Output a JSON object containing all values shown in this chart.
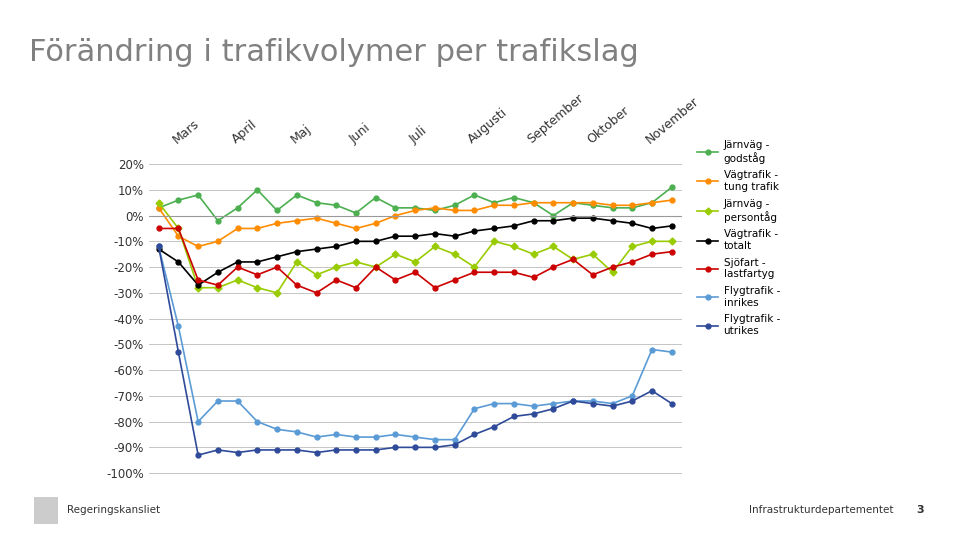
{
  "title": "Förändring i trafikvolymer per trafikslag",
  "background_color": "#ffffff",
  "title_fontsize": 22,
  "title_color": "#808080",
  "x_labels": [
    "Mars",
    "April",
    "Maj",
    "Juni",
    "Juli",
    "Augusti",
    "September",
    "Oktober",
    "November"
  ],
  "series": {
    "Järnväg -\ngodståg": {
      "color": "#4CAF50",
      "marker": "o",
      "data": [
        3,
        6,
        8,
        -2,
        3,
        10,
        2,
        8,
        5,
        4,
        1,
        7,
        3,
        3,
        2,
        4,
        8,
        5,
        7,
        5,
        0,
        5,
        4,
        3,
        3,
        5,
        11
      ]
    },
    "Vägtrafik -\ntung trafik": {
      "color": "#FF8C00",
      "marker": "o",
      "data": [
        3,
        -8,
        -12,
        -10,
        -5,
        -5,
        -3,
        -2,
        -1,
        -3,
        -5,
        -3,
        0,
        2,
        3,
        2,
        2,
        4,
        4,
        5,
        5,
        5,
        5,
        4,
        4,
        5,
        6
      ]
    },
    "Järnväg -\npersontåg": {
      "color": "#99CC00",
      "marker": "D",
      "data": [
        5,
        -5,
        -28,
        -28,
        -25,
        -28,
        -30,
        -18,
        -23,
        -20,
        -18,
        -20,
        -15,
        -18,
        -12,
        -15,
        -20,
        -10,
        -12,
        -15,
        -12,
        -17,
        -15,
        -22,
        -12,
        -10,
        -10
      ]
    },
    "Vägtrafik -\ntotalt": {
      "color": "#000000",
      "marker": "o",
      "data": [
        -13,
        -18,
        -27,
        -22,
        -18,
        -18,
        -16,
        -14,
        -13,
        -12,
        -10,
        -10,
        -8,
        -8,
        -7,
        -8,
        -6,
        -5,
        -4,
        -2,
        -2,
        -1,
        -1,
        -2,
        -3,
        -5,
        -4
      ]
    },
    "Sjöfart -\nlastfartyg": {
      "color": "#CC0000",
      "marker": "o",
      "data": [
        -5,
        -5,
        -25,
        -27,
        -20,
        -23,
        -20,
        -27,
        -30,
        -25,
        -28,
        -20,
        -25,
        -22,
        -28,
        -25,
        -22,
        -22,
        -22,
        -24,
        -20,
        -17,
        -23,
        -20,
        -18,
        -15,
        -14
      ]
    },
    "Flygtrafik -\ninrikes": {
      "color": "#5B9BD5",
      "marker": "o",
      "data": [
        -12,
        -43,
        -80,
        -72,
        -72,
        -80,
        -83,
        -84,
        -86,
        -85,
        -86,
        -86,
        -85,
        -86,
        -87,
        -87,
        -75,
        -73,
        -73,
        -74,
        -73,
        -72,
        -72,
        -73,
        -70,
        -52,
        -53
      ]
    },
    "Flygtrafik -\nutrikes": {
      "color": "#2E4A99",
      "marker": "o",
      "data": [
        -12,
        -53,
        -93,
        -91,
        -92,
        -91,
        -91,
        -91,
        -92,
        -91,
        -91,
        -91,
        -90,
        -90,
        -90,
        -89,
        -85,
        -82,
        -78,
        -77,
        -75,
        -72,
        -73,
        -74,
        -72,
        -68,
        -73
      ]
    }
  },
  "ylim": [
    -105,
    25
  ],
  "yticks": [
    20,
    10,
    0,
    -10,
    -20,
    -30,
    -40,
    -50,
    -60,
    -70,
    -80,
    -90,
    -100
  ],
  "month_positions": [
    1,
    4,
    7,
    10,
    13,
    16,
    19,
    22,
    25
  ],
  "n_points": 27,
  "footer_left": "Regeringskansliet",
  "footer_right": "Infrastrukturdepartementet",
  "footer_number": "3"
}
